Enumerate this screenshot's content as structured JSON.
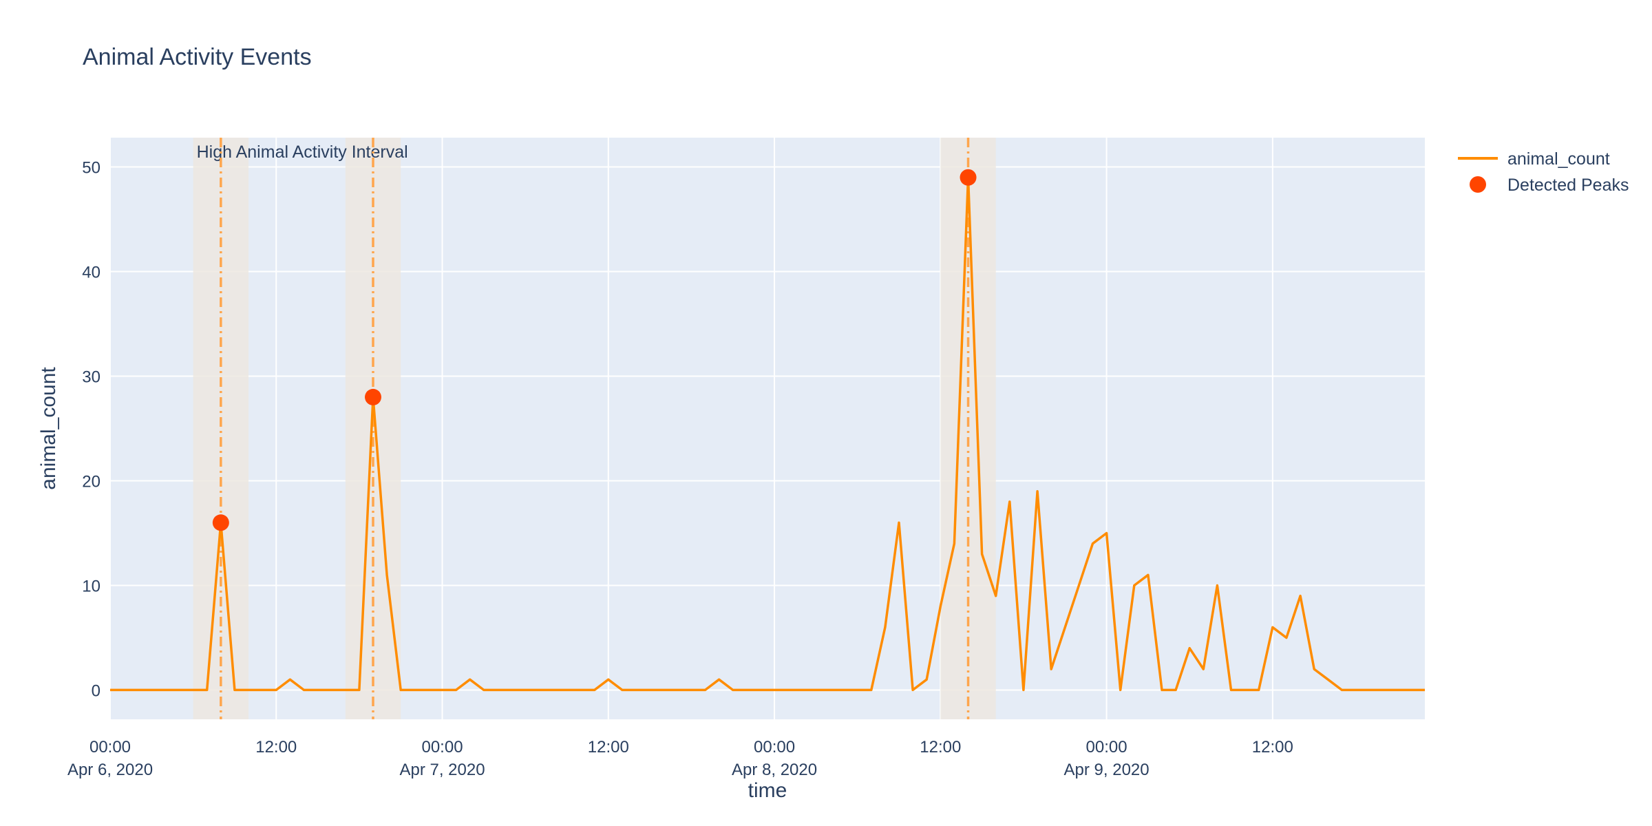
{
  "chart_data": {
    "type": "line",
    "title": "Animal Activity Events",
    "xlabel": "time",
    "ylabel": "animal_count",
    "x_start": "2020-04-06 00:00",
    "x_step_hours": 1,
    "xlim": [
      "2020-04-06 00:00",
      "2020-04-09 23:00"
    ],
    "ylim": [
      -2.8,
      52.8
    ],
    "yticks": [
      0,
      10,
      20,
      30,
      40,
      50
    ],
    "xticks": [
      {
        "t": "2020-04-06 00:00",
        "label": [
          "00:00",
          "Apr 6, 2020"
        ]
      },
      {
        "t": "2020-04-06 12:00",
        "label": [
          "12:00"
        ]
      },
      {
        "t": "2020-04-07 00:00",
        "label": [
          "00:00",
          "Apr 7, 2020"
        ]
      },
      {
        "t": "2020-04-07 12:00",
        "label": [
          "12:00"
        ]
      },
      {
        "t": "2020-04-08 00:00",
        "label": [
          "00:00",
          "Apr 8, 2020"
        ]
      },
      {
        "t": "2020-04-08 12:00",
        "label": [
          "12:00"
        ]
      },
      {
        "t": "2020-04-09 00:00",
        "label": [
          "00:00",
          "Apr 9, 2020"
        ]
      },
      {
        "t": "2020-04-09 12:00",
        "label": [
          "12:00"
        ]
      }
    ],
    "grid": true,
    "legend_position": "top-right",
    "series": [
      {
        "name": "animal_count",
        "type": "line",
        "color": "#ff8c00",
        "values": [
          0,
          0,
          0,
          0,
          0,
          0,
          0,
          0,
          16,
          0,
          0,
          0,
          0,
          1,
          0,
          0,
          0,
          0,
          0,
          28,
          11,
          0,
          0,
          0,
          0,
          0,
          1,
          0,
          0,
          0,
          0,
          0,
          0,
          0,
          0,
          0,
          1,
          0,
          0,
          0,
          0,
          0,
          0,
          0,
          1,
          0,
          0,
          0,
          0,
          0,
          0,
          0,
          0,
          0,
          0,
          0,
          6,
          16,
          0,
          1,
          8,
          14,
          49,
          13,
          9,
          18,
          0,
          19,
          2,
          6,
          10,
          14,
          15,
          0,
          10,
          11,
          0,
          0,
          4,
          2,
          10,
          0,
          0,
          0,
          6,
          5,
          9,
          2,
          1,
          0,
          0,
          0,
          0,
          0,
          0,
          0
        ]
      },
      {
        "name": "Detected Peaks",
        "type": "scatter",
        "color": "#ff4500",
        "points": [
          {
            "t": "2020-04-06 08:00",
            "y": 16
          },
          {
            "t": "2020-04-06 19:00",
            "y": 28
          },
          {
            "t": "2020-04-08 14:00",
            "y": 49
          }
        ]
      }
    ],
    "intervals": [
      {
        "start": "2020-04-06 06:00",
        "end": "2020-04-06 10:00"
      },
      {
        "start": "2020-04-06 17:00",
        "end": "2020-04-06 21:00"
      },
      {
        "start": "2020-04-08 12:00",
        "end": "2020-04-08 16:00"
      }
    ],
    "interval_label": "High Animal Activity Interval",
    "vlines": [
      "2020-04-06 08:00",
      "2020-04-06 19:00",
      "2020-04-08 14:00"
    ],
    "colors": {
      "plot_bg": "#e5ecf6",
      "grid": "#ffffff",
      "text": "#2a3f5f",
      "interval_fill": "#ede8e0",
      "vline": "#ffa64d"
    }
  }
}
